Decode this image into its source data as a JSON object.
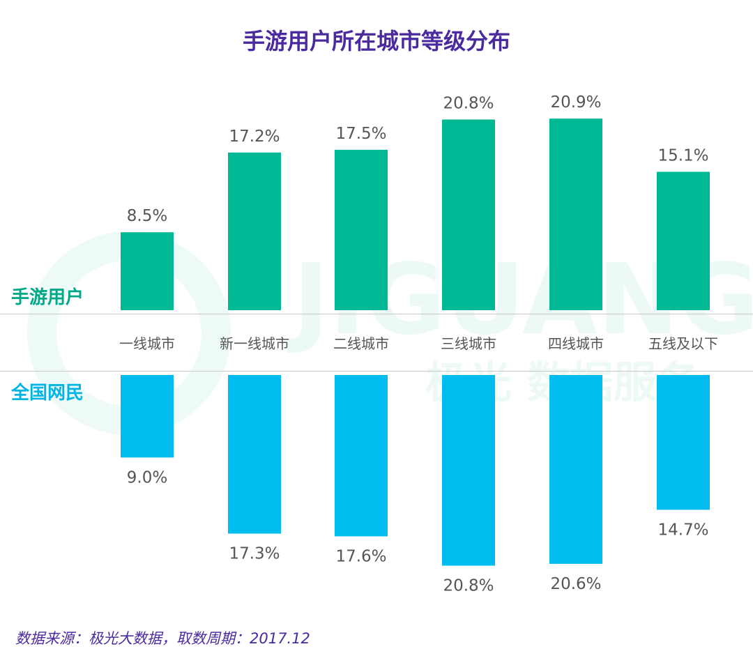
{
  "chart_data": {
    "type": "bar",
    "title": "手游用户所在城市等级分布",
    "categories": [
      "一线城市",
      "新一线城市",
      "二线城市",
      "三线城市",
      "四线城市",
      "五线及以下"
    ],
    "series": [
      {
        "name": "手游用户",
        "values": [
          8.5,
          17.2,
          17.5,
          20.8,
          20.9,
          15.1
        ],
        "labels": [
          "8.5%",
          "17.2%",
          "17.5%",
          "20.8%",
          "20.9%",
          "15.1%"
        ],
        "color": "#00b894"
      },
      {
        "name": "全国网民",
        "values": [
          9.0,
          17.3,
          17.6,
          20.8,
          20.6,
          14.7
        ],
        "labels": [
          "9.0%",
          "17.3%",
          "17.6%",
          "20.8%",
          "20.6%",
          "14.7%"
        ],
        "color": "#00bcef"
      }
    ],
    "unit": "%"
  },
  "watermark": {
    "brand": "JIGUANG",
    "tagline": "极光 数据服务"
  },
  "source": "数据来源：极光大数据，取数周期：2017.12"
}
